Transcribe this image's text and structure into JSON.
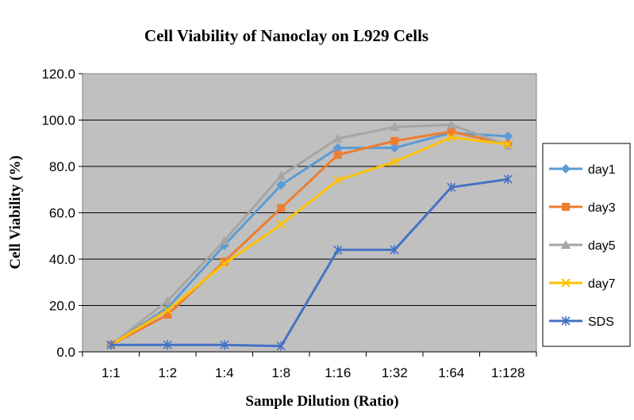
{
  "chart_data": {
    "type": "line",
    "title": "Cell Viability of Nanoclay on L929 Cells",
    "xlabel": "Sample Dilution (Ratio)",
    "ylabel": "Cell Viability (%)",
    "categories": [
      "1:1",
      "1:2",
      "1:4",
      "1:8",
      "1:16",
      "1:32",
      "1:64",
      "1:128"
    ],
    "ylim": [
      0,
      120
    ],
    "yticks": [
      "0.0",
      "20.0",
      "40.0",
      "60.0",
      "80.0",
      "100.0",
      "120.0"
    ],
    "grid": "horizontal",
    "legend_position": "right",
    "plot_background": "#c0c0c0",
    "series": [
      {
        "name": "day1",
        "color": "#5b9bd5",
        "marker": "diamond",
        "values": [
          3,
          19,
          46,
          72,
          88,
          88,
          94.5,
          93
        ]
      },
      {
        "name": "day3",
        "color": "#ed7d31",
        "marker": "square",
        "values": [
          3,
          16,
          39,
          62,
          85,
          91,
          95,
          89.5
        ]
      },
      {
        "name": "day5",
        "color": "#a5a5a5",
        "marker": "triangle",
        "values": [
          3,
          22,
          48,
          76,
          92,
          97,
          98,
          89
        ]
      },
      {
        "name": "day7",
        "color": "#ffc000",
        "marker": "x",
        "values": [
          3,
          18,
          38,
          55,
          74,
          82,
          92.5,
          89.5
        ]
      },
      {
        "name": "SDS",
        "color": "#4472c4",
        "marker": "star",
        "values": [
          3,
          3,
          3,
          2.5,
          44,
          44,
          71,
          74.5
        ]
      }
    ]
  }
}
